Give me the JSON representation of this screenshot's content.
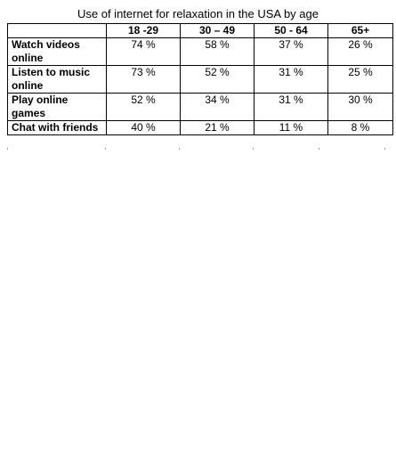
{
  "chart_data": {
    "type": "table",
    "title": "Use of internet for relaxation in the USA by age",
    "columns": [
      "",
      "18 -29",
      "30 – 49",
      "50 - 64",
      "65+"
    ],
    "rows": [
      {
        "label": "Watch videos online",
        "values": [
          "74 %",
          "58 %",
          "37 %",
          "26 %"
        ]
      },
      {
        "label": "Listen to music online",
        "values": [
          "73 %",
          "52 %",
          "31 %",
          "25 %"
        ]
      },
      {
        "label": "Play online games",
        "values": [
          "52 %",
          "34 %",
          "31 %",
          "30 %"
        ]
      },
      {
        "label": "Chat with friends",
        "values": [
          "40 %",
          "21 %",
          "11 %",
          "8 %"
        ]
      }
    ]
  }
}
